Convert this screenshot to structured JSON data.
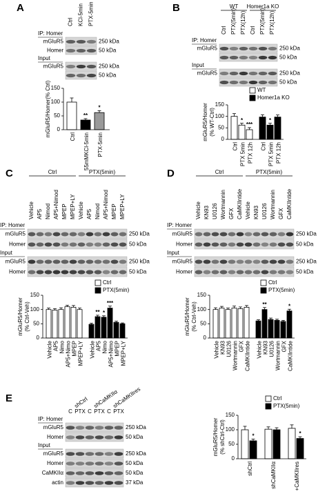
{
  "panels": [
    {
      "letter": "A",
      "lanes": [
        "Ctrl",
        "KCl-5min",
        "PTX-5min"
      ],
      "rows": [
        {
          "heading": "IP: Homer"
        },
        {
          "label": "mGluR5",
          "marker": "250 kDa"
        },
        {
          "label": "Homer",
          "marker": "50 kDa"
        },
        {
          "heading": "Input"
        },
        {
          "label": "mGluR5",
          "marker": "250 kDa"
        },
        {
          "marker": "50 kDa"
        }
      ]
    },
    {
      "letter": "B",
      "groups": [
        "WT",
        "Homer1a KO"
      ],
      "lanes": [
        "Ctrl",
        "PTX(5min)",
        "PTX(12h)",
        "Ctrl",
        "PTX(5min)",
        "PTX(12h)"
      ],
      "rows": [
        {
          "heading": "IP: Homer"
        },
        {
          "label": "mGluR5",
          "marker": "250 kDa"
        },
        {
          "marker": "50 kDa"
        },
        {
          "heading": "Input"
        },
        {
          "label": "mGluR5",
          "marker": "250 kDa"
        },
        {
          "marker": "50 kDa"
        }
      ]
    },
    {
      "letter": "C",
      "groups": [
        "Ctrl",
        "PTX(5min)"
      ],
      "lanes": [
        "Vehicle",
        "AP5",
        "Nimod",
        "AP5+Nimod",
        "MPEP",
        "MPEP+LY",
        "Vehicle",
        "AP5",
        "Nimod",
        "AP5+Nimod",
        "MPEP",
        "MPEP+LY"
      ],
      "rows": [
        {
          "heading": "IP: Homer"
        },
        {
          "label": "mGluR5",
          "marker": "250 kDa"
        },
        {
          "label": "Homer",
          "marker": "50 kDa"
        },
        {
          "heading": "Input"
        },
        {
          "label": "mGluR5",
          "marker": "250 kDa"
        },
        {
          "label": "Homer",
          "marker": "50 kDa"
        }
      ]
    },
    {
      "letter": "D",
      "groups": [
        "Ctrl",
        "PTX(5min)"
      ],
      "lanes": [
        "Vehicle",
        "KN93",
        "U0126",
        "Wortmannin",
        "GFX",
        "CaMKIIntide",
        "Vehicle",
        "KN93",
        "U0126",
        "Wortmannin",
        "GFX",
        "CaMKIIntide"
      ],
      "rows": [
        {
          "heading": "IP: Homer"
        },
        {
          "label": "mGluR5",
          "marker": "250 kDa"
        },
        {
          "label": "Homer",
          "marker": "50 kDa"
        },
        {
          "heading": "Input"
        },
        {
          "label": "mGluR5",
          "marker": "250 kDa"
        },
        {
          "label": "Homer",
          "marker": "50 kDa"
        }
      ]
    },
    {
      "letter": "E",
      "groups": [
        "shCtrl",
        "shCaMKIIα",
        "shCaMKIIres"
      ],
      "lanes": [
        "C",
        "PTX",
        "C",
        "PTX",
        "C",
        "PTX"
      ],
      "rows": [
        {
          "heading": "IP: Homer"
        },
        {
          "label": "mGluR5",
          "marker": "250 kDa"
        },
        {
          "label": "Homer",
          "marker": "50 kDa"
        },
        {
          "heading": "Input"
        },
        {
          "label": "mGluR5",
          "marker": "250 kDa"
        },
        {
          "label": "Homer",
          "marker": "50 kDa"
        },
        {
          "label": "CaMKIIα",
          "marker": "50 kDa"
        },
        {
          "label": "actin",
          "marker": "37 kDa"
        }
      ]
    }
  ],
  "chart_data": [
    {
      "type": "bar",
      "ylabel": [
        "mGluR5/Homer(% Ctrl)"
      ],
      "ylim": [
        0,
        150
      ],
      "yticks": [
        0,
        50,
        100,
        150
      ],
      "series": [
        {
          "categories": [
            "Ctrl",
            "55mMKCl-5min",
            "PTX-5min"
          ],
          "colors": [
            "#ffffff",
            "#000000",
            "#999999"
          ],
          "values": [
            100,
            35,
            62
          ],
          "errors": [
            15,
            5,
            7
          ],
          "annotations": [
            null,
            "**",
            "*"
          ]
        }
      ]
    },
    {
      "type": "bar",
      "ylabel": [
        "mGluR5/Homer",
        "(% WT-Ctrl)"
      ],
      "ylim": [
        0,
        150
      ],
      "yticks": [
        0,
        50,
        100,
        150
      ],
      "series": [
        {
          "name": "WT",
          "color": "#ffffff",
          "categories": [
            "Ctrl",
            "PTX 5min",
            "PTX 12h"
          ],
          "values": [
            100,
            62,
            42
          ],
          "errors": [
            12,
            8,
            9
          ],
          "annotations": [
            null,
            "*",
            "***"
          ]
        },
        {
          "name": "Homer1a KO",
          "color": "#000000",
          "categories": [
            "Ctrl",
            "PTX 5min",
            "PTX 12h"
          ],
          "values": [
            97,
            62,
            97
          ],
          "errors": [
            10,
            8,
            9
          ],
          "annotations": [
            null,
            "*",
            null
          ]
        }
      ]
    },
    {
      "type": "bar",
      "ylabel": [
        "mGluR5/Homer",
        "(% Ctrl-Veh)"
      ],
      "ylim": [
        0,
        150
      ],
      "yticks": [
        0,
        50,
        100,
        150
      ],
      "series": [
        {
          "name": "Ctrl",
          "color": "#ffffff",
          "categories": [
            "Vehicle",
            "AP5",
            "Nimo",
            "AP5+Nimo",
            "MPEP",
            "MPEP+LY"
          ],
          "values": [
            100,
            98,
            100,
            110,
            108,
            100
          ],
          "errors": [
            5,
            5,
            6,
            5,
            6,
            5
          ],
          "annotations": [
            null,
            null,
            null,
            null,
            null,
            null
          ]
        },
        {
          "name": "PTX(5min)",
          "color": "#000000",
          "categories": [
            "Vehicle",
            "AP5",
            "Nimo",
            "AP5+Nimo",
            "MPEP",
            "MPEP+LY"
          ],
          "values": [
            48,
            75,
            73,
            105,
            55,
            50
          ],
          "errors": [
            4,
            5,
            5,
            7,
            4,
            3
          ],
          "annotations": [
            null,
            "**",
            "*",
            "***",
            null,
            null
          ]
        }
      ]
    },
    {
      "type": "bar",
      "ylabel": [
        "mGluR5/Homer",
        "(% Ctrl-Veh)"
      ],
      "ylim": [
        0,
        150
      ],
      "yticks": [
        0,
        50,
        100,
        150
      ],
      "series": [
        {
          "name": "Ctrl",
          "color": "#ffffff",
          "categories": [
            "Vehicle",
            "KN93",
            "U0126",
            "Wortmannin",
            "GFX",
            "CaMKIIntide"
          ],
          "values": [
            100,
            105,
            100,
            105,
            103,
            108
          ],
          "errors": [
            6,
            6,
            5,
            7,
            6,
            6
          ],
          "annotations": [
            null,
            null,
            null,
            null,
            null,
            null
          ]
        },
        {
          "name": "PTX(5min)",
          "color": "#000000",
          "categories": [
            "Vehicle",
            "KN93",
            "U0126",
            "Wortmannin",
            "GFX",
            "CaMKIIntide"
          ],
          "values": [
            60,
            100,
            65,
            62,
            58,
            95
          ],
          "errors": [
            4,
            7,
            5,
            4,
            4,
            6
          ],
          "annotations": [
            null,
            "**",
            null,
            null,
            null,
            "*"
          ]
        }
      ]
    },
    {
      "type": "bar",
      "ylabel": [
        "mGluR5/Homer",
        "(% shCtrl-Ctrl)"
      ],
      "ylim": [
        0,
        150
      ],
      "yticks": [
        0,
        50,
        100,
        150
      ],
      "categories": [
        "shCtrl",
        "shCaMKIIα",
        "+CaMKIIres"
      ],
      "series": [
        {
          "name": "Ctrl",
          "color": "#ffffff",
          "values": [
            100,
            102,
            105
          ],
          "errors": [
            12,
            8,
            12
          ],
          "annotations": [
            null,
            null,
            null
          ]
        },
        {
          "name": "PTX(5min)",
          "color": "#000000",
          "values": [
            62,
            100,
            70
          ],
          "errors": [
            6,
            7,
            6
          ],
          "annotations": [
            "*",
            null,
            "*"
          ]
        }
      ]
    }
  ]
}
